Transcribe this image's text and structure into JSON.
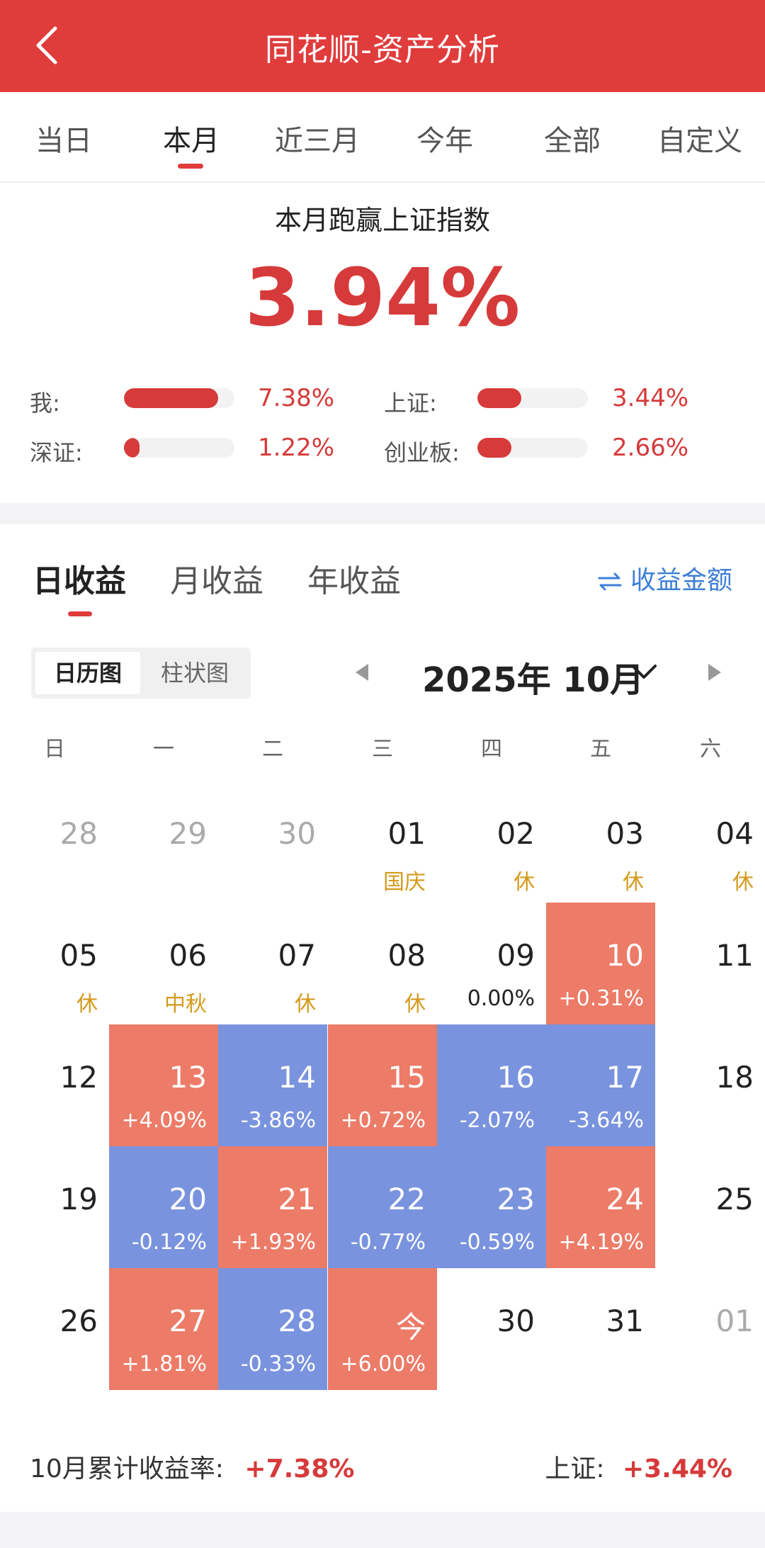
{
  "header": {
    "title": "同花顺-资产分析"
  },
  "period_tabs": [
    {
      "label": "当日",
      "active": false
    },
    {
      "label": "本月",
      "active": true
    },
    {
      "label": "近三月",
      "active": false
    },
    {
      "label": "今年",
      "active": false
    },
    {
      "label": "全部",
      "active": false
    },
    {
      "label": "自定义",
      "active": false
    }
  ],
  "summary": {
    "subtitle": "本月跑赢上证指数",
    "value": "3.94%",
    "comparisons": [
      {
        "label": "我:",
        "value": "7.38%",
        "fill": 0.85
      },
      {
        "label": "上证:",
        "value": "3.44%",
        "fill": 0.4
      },
      {
        "label": "深证:",
        "value": "1.22%",
        "fill": 0.14
      },
      {
        "label": "创业板:",
        "value": "2.66%",
        "fill": 0.31
      }
    ]
  },
  "section_tabs": [
    {
      "label": "日收益",
      "active": true
    },
    {
      "label": "月收益",
      "active": false
    },
    {
      "label": "年收益",
      "active": false
    }
  ],
  "amount_toggle": {
    "icon": "swap-arrows-icon",
    "label": "收益金额"
  },
  "view_switch": [
    {
      "label": "日历图",
      "active": true
    },
    {
      "label": "柱状图",
      "active": false
    }
  ],
  "calendar": {
    "month_label": "2025年 10月",
    "weekdays": [
      "日",
      "一",
      "二",
      "三",
      "四",
      "五",
      "六"
    ],
    "rows": [
      [
        {
          "day": "28",
          "muted": true
        },
        {
          "day": "29",
          "muted": true
        },
        {
          "day": "30",
          "muted": true
        },
        {
          "day": "01",
          "tag": "国庆"
        },
        {
          "day": "02",
          "tag": "休"
        },
        {
          "day": "03",
          "tag": "休"
        },
        {
          "day": "04",
          "tag": "休"
        }
      ],
      [
        {
          "day": "05",
          "tag": "休"
        },
        {
          "day": "06",
          "tag": "中秋"
        },
        {
          "day": "07",
          "tag": "休"
        },
        {
          "day": "08",
          "tag": "休"
        },
        {
          "day": "09",
          "value": "0.00%"
        },
        {
          "day": "10",
          "value": "+0.31%",
          "trend": "up"
        },
        {
          "day": "11"
        }
      ],
      [
        {
          "day": "12"
        },
        {
          "day": "13",
          "value": "+4.09%",
          "trend": "up"
        },
        {
          "day": "14",
          "value": "-3.86%",
          "trend": "down"
        },
        {
          "day": "15",
          "value": "+0.72%",
          "trend": "up"
        },
        {
          "day": "16",
          "value": "-2.07%",
          "trend": "down"
        },
        {
          "day": "17",
          "value": "-3.64%",
          "trend": "down"
        },
        {
          "day": "18"
        }
      ],
      [
        {
          "day": "19"
        },
        {
          "day": "20",
          "value": "-0.12%",
          "trend": "down"
        },
        {
          "day": "21",
          "value": "+1.93%",
          "trend": "up"
        },
        {
          "day": "22",
          "value": "-0.77%",
          "trend": "down"
        },
        {
          "day": "23",
          "value": "-0.59%",
          "trend": "down"
        },
        {
          "day": "24",
          "value": "+4.19%",
          "trend": "up"
        },
        {
          "day": "25"
        }
      ],
      [
        {
          "day": "26"
        },
        {
          "day": "27",
          "value": "+1.81%",
          "trend": "up"
        },
        {
          "day": "28",
          "value": "-0.33%",
          "trend": "down"
        },
        {
          "day": "今",
          "value": "+6.00%",
          "trend": "up"
        },
        {
          "day": "30"
        },
        {
          "day": "31"
        },
        {
          "day": "01",
          "muted": true
        }
      ]
    ]
  },
  "footer": {
    "cumulative_label": "10月累计收益率:",
    "cumulative_value": "+7.38%",
    "index_label": "上证:",
    "index_value": "+3.44%"
  },
  "colors": {
    "brand": "#e03c3c",
    "up": "#ec7b68",
    "down": "#7a93de",
    "tag": "#d49a1c",
    "link": "#3d7fd6"
  }
}
